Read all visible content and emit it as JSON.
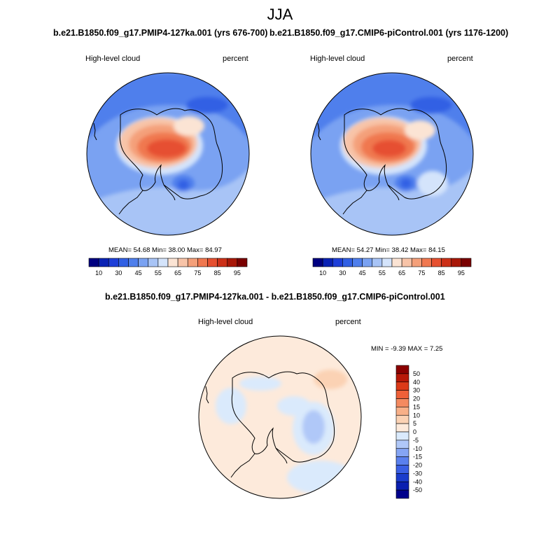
{
  "main_title": "JJA",
  "panel_left": {
    "case_title": "b.e21.B1850.f09_g17.PMIP4-127ka.001 (yrs 676-700)",
    "variable": "High-level cloud",
    "units": "percent",
    "stats": "MEAN=  54.68  Min=  38.00  Max=  84.97"
  },
  "panel_right": {
    "case_title": "b.e21.B1850.f09_g17.CMIP6-piControl.001 (yrs 1176-1200)",
    "variable": "High-level cloud",
    "units": "percent",
    "stats": "MEAN=  54.27  Min=  38.42  Max=  84.15"
  },
  "panel_diff": {
    "case_title": "b.e21.B1850.f09_g17.PMIP4-127ka.001 - b.e21.B1850.f09_g17.CMIP6-piControl.001",
    "variable": "High-level cloud",
    "units": "percent",
    "stats": "MIN =  -9.39 MAX =   7.25"
  },
  "colorbar_main": {
    "colors": [
      "#000080",
      "#0a22b4",
      "#1e3fd8",
      "#3160e4",
      "#4f7fec",
      "#7aa2f2",
      "#a8c4f6",
      "#d4e4fb",
      "#fbe4d4",
      "#f8c4a8",
      "#f4a07a",
      "#f07850",
      "#e65030",
      "#cc3018",
      "#a81808",
      "#7a0000"
    ],
    "tick_labels": [
      "10",
      "30",
      "45",
      "55",
      "65",
      "75",
      "85",
      "95"
    ]
  },
  "colorbar_diff": {
    "colors": [
      "#00008b",
      "#0a1fb0",
      "#1a3ccc",
      "#3a5fe4",
      "#5a80ee",
      "#85a5f4",
      "#b0c8f8",
      "#daeafc",
      "#fdeadb",
      "#fbd2b4",
      "#f8b088",
      "#f48a60",
      "#ee6038",
      "#dc3a18",
      "#b81808",
      "#8b0000"
    ],
    "tick_labels": [
      "50",
      "40",
      "30",
      "20",
      "15",
      "10",
      "5",
      "0",
      "-5",
      "-10",
      "-15",
      "-20",
      "-30",
      "-40",
      "-50"
    ]
  }
}
